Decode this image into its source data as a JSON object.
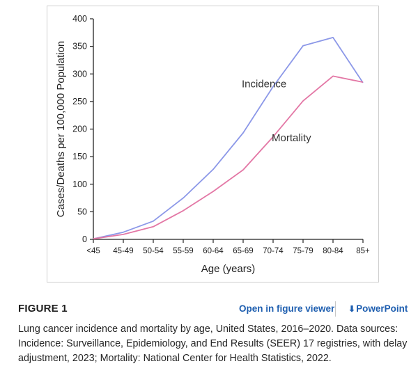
{
  "figure": {
    "label": "FIGURE 1",
    "viewer_link": "Open in figure viewer",
    "powerpoint_link": "PowerPoint",
    "caption": "Lung cancer incidence and mortality by age, United States, 2016–2020. Data sources: Incidence: Surveillance, Epidemiology, and End Results (SEER) 17 registries, with delay adjustment, 2023; Mortality: National Center for Health Statistics, 2022."
  },
  "icons": {
    "powerpoint": "download-arrow-icon"
  },
  "colors": {
    "incidence": "#8c98e8",
    "mortality": "#e377a5",
    "link": "#1f5fb0"
  },
  "chart_data": {
    "type": "line",
    "title": "",
    "xlabel": "Age (years)",
    "ylabel": "Cases/Deaths per 100,000 Population",
    "ylim": [
      0,
      400
    ],
    "yticks": [
      0,
      50,
      100,
      150,
      200,
      250,
      300,
      350,
      400
    ],
    "categories": [
      "<45",
      "45-49",
      "50-54",
      "55-59",
      "60-64",
      "65-69",
      "70-74",
      "75-79",
      "80-84",
      "85+"
    ],
    "grid": false,
    "legend": "inline labels",
    "series": [
      {
        "name": "Incidence",
        "values": [
          1,
          13,
          33,
          75,
          127,
          193,
          277,
          351,
          366,
          284
        ]
      },
      {
        "name": "Mortality",
        "values": [
          1,
          9,
          23,
          52,
          87,
          126,
          186,
          251,
          296,
          285
        ]
      }
    ]
  }
}
